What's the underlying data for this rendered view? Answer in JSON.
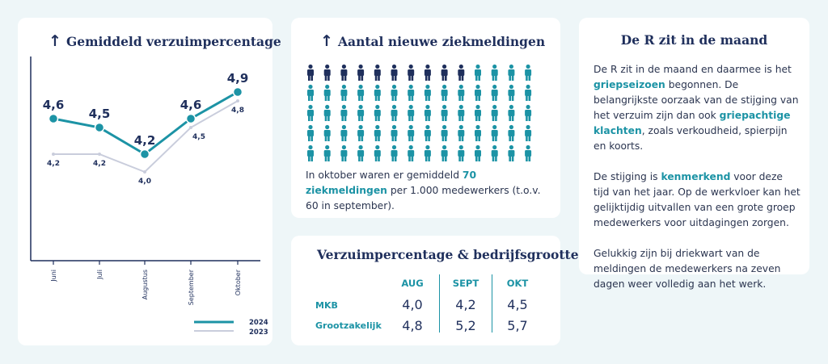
{
  "colors": {
    "teal": "#1c93a5",
    "navy": "#1f2f5c",
    "gray_line": "#c9cddc",
    "bg": "#eef6f8"
  },
  "chart_panel": {
    "arrow": "↑",
    "title": "Gemiddeld verzuimpercentage"
  },
  "chart_data": {
    "type": "line",
    "categories": [
      "Juni",
      "Juli",
      "Augustus",
      "September",
      "Oktober"
    ],
    "series": [
      {
        "name": "2024",
        "values": [
          4.6,
          4.5,
          4.2,
          4.6,
          4.9
        ],
        "labels": [
          "4,6",
          "4,5",
          "4,2",
          "4,6",
          "4,9"
        ]
      },
      {
        "name": "2023",
        "values": [
          4.2,
          4.2,
          4.0,
          4.5,
          4.8
        ],
        "labels": [
          "4,2",
          "4,2",
          "4,0",
          "4,5",
          "4,8"
        ]
      }
    ],
    "ylim": [
      3.0,
      5.3
    ],
    "legend_position": "bottom-right"
  },
  "sick_panel": {
    "arrow": "↑",
    "title": "Aantal nieuwe ziekmeldingen",
    "icons_total": 70,
    "icons_highlighted": 10,
    "text_prefix": "In oktober waren er gemiddeld ",
    "text_highlight": "70 ziekmeldingen",
    "text_suffix": " per 1.000 medewerkers (t.o.v. 60 in september)."
  },
  "size_panel": {
    "title": "Verzuimpercentage & bedrijfsgrootte",
    "columns": [
      "AUG",
      "SEPT",
      "OKT"
    ],
    "rows": [
      {
        "label": "MKB",
        "values": [
          "4,0",
          "4,2",
          "4,5"
        ]
      },
      {
        "label": "Grootzakelijk",
        "values": [
          "4,8",
          "5,2",
          "5,7"
        ]
      }
    ]
  },
  "r_panel": {
    "title": "De R zit in de maand",
    "p1_a": "De R zit in de maand en daarmee is het ",
    "p1_b": "griepseizoen",
    "p1_c": " begonnen. De belangrijkste oorzaak van de stijging van het verzuim zijn dan ook ",
    "p1_d": "griepachtige klachten",
    "p1_e": ", zoals verkoudheid, spierpijn en koorts.",
    "p2_a": "De stijging is ",
    "p2_b": "kenmerkend",
    "p2_c": " voor deze tijd van het jaar. Op de werkvloer kan het gelijktijdig uitvallen van een grote groep medewerkers voor uitdagingen zorgen.",
    "p3": "Gelukkig zijn bij driekwart van de meldingen de medewerkers na zeven dagen weer volledig aan het werk."
  }
}
